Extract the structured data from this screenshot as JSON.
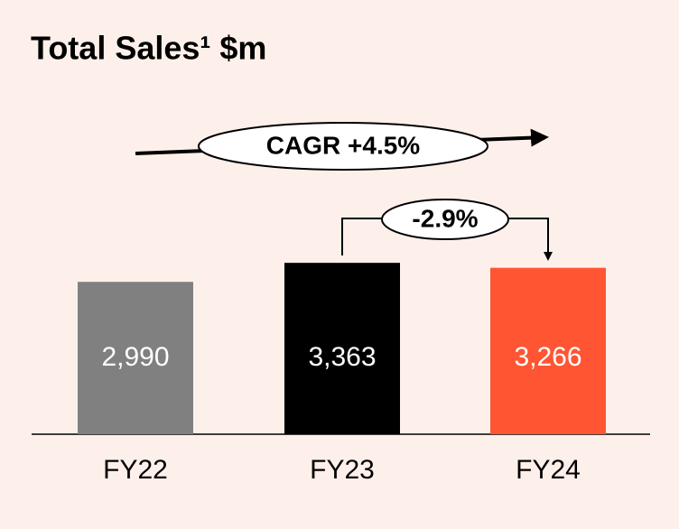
{
  "chart_data": {
    "type": "bar",
    "title": "Total Sales¹ $m",
    "categories": [
      "FY22",
      "FY23",
      "FY24"
    ],
    "values": [
      2990,
      3363,
      3266
    ],
    "value_labels": [
      "2,990",
      "3,363",
      "3,266"
    ],
    "colors": [
      "#808080",
      "#000000",
      "#ff5533"
    ],
    "ylim": [
      0,
      4500
    ],
    "annotations": [
      "CAGR +4.5%",
      "-2.9%"
    ]
  }
}
